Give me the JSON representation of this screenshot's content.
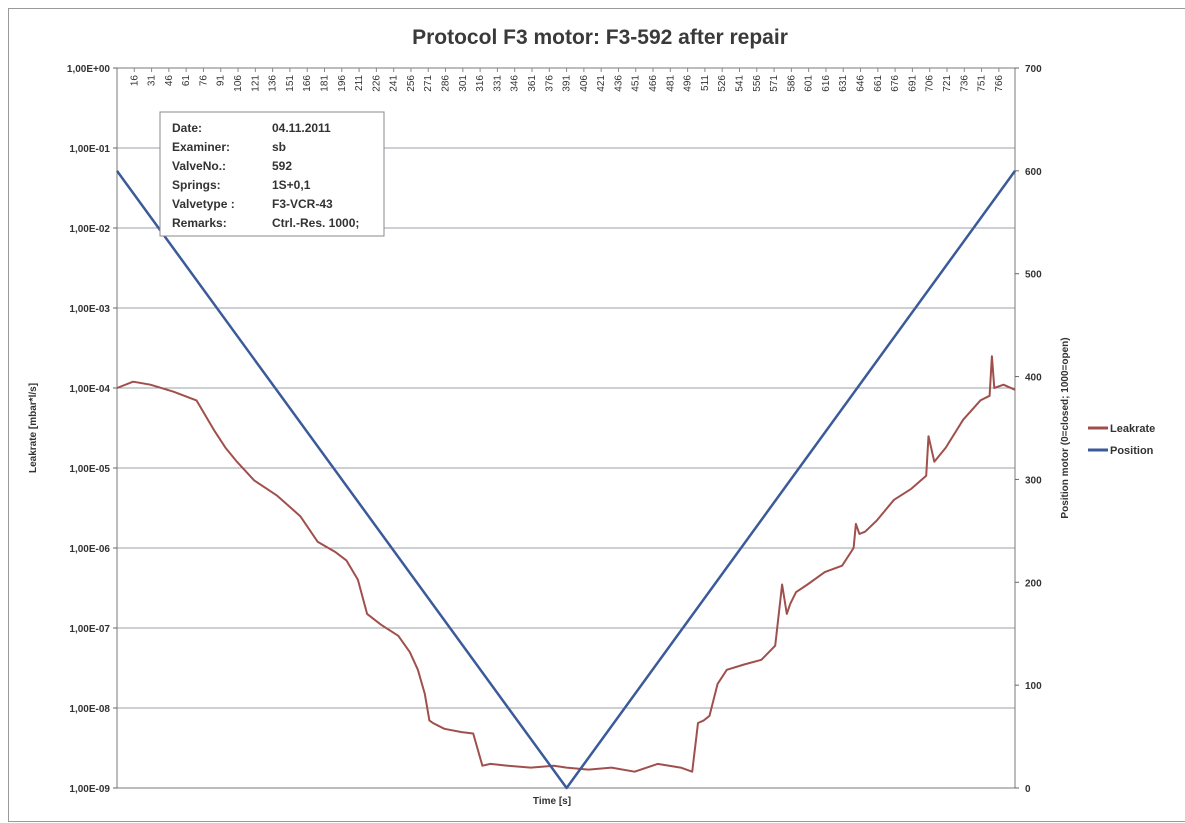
{
  "chart_data": {
    "type": "line",
    "title": "Protocol F3 motor: F3-592 after repair",
    "xlabel": "Time [s]",
    "ylabel_left": "Leakrate [mbar*l/s]",
    "ylabel_right": "Position motor (0=closed; 1000=open)",
    "x_ticks": [
      "16",
      "31",
      "46",
      "61",
      "76",
      "91",
      "106",
      "121",
      "136",
      "151",
      "166",
      "181",
      "196",
      "211",
      "226",
      "241",
      "256",
      "271",
      "286",
      "301",
      "316",
      "331",
      "346",
      "361",
      "376",
      "391",
      "406",
      "421",
      "436",
      "451",
      "466",
      "481",
      "496",
      "511",
      "526",
      "541",
      "556",
      "571",
      "586",
      "601",
      "616",
      "631",
      "646",
      "661",
      "676",
      "691",
      "706",
      "721",
      "736",
      "751",
      "766"
    ],
    "x_range": [
      1,
      780
    ],
    "y_left": {
      "scale": "log",
      "range": [
        1e-09,
        1
      ],
      "tick_labels": [
        "1,00E+00",
        "1,00E-01",
        "1,00E-02",
        "1,00E-03",
        "1,00E-04",
        "1,00E-05",
        "1,00E-06",
        "1,00E-07",
        "1,00E-08",
        "1,00E-09"
      ],
      "tick_values": [
        1,
        0.1,
        0.01,
        0.001,
        0.0001,
        1e-05,
        1e-06,
        1e-07,
        1e-08,
        1e-09
      ]
    },
    "y_right": {
      "scale": "linear",
      "range": [
        0,
        700
      ],
      "tick_labels": [
        "700",
        "600",
        "500",
        "400",
        "300",
        "200",
        "100",
        "0"
      ],
      "tick_values": [
        700,
        600,
        500,
        400,
        300,
        200,
        100,
        0
      ]
    },
    "grid": true,
    "legend_position": "right",
    "series": [
      {
        "name": "Leakrate",
        "axis": "left",
        "color": "#a0504c",
        "x": [
          1,
          15,
          30,
          50,
          70,
          85,
          95,
          105,
          120,
          140,
          160,
          175,
          190,
          200,
          210,
          218,
          230,
          245,
          255,
          262,
          268,
          272,
          275,
          285,
          300,
          310,
          318,
          325,
          340,
          360,
          380,
          391,
          410,
          430,
          450,
          470,
          490,
          500,
          505,
          510,
          515,
          522,
          530,
          545,
          560,
          572,
          578,
          582,
          585,
          590,
          600,
          615,
          630,
          640,
          642,
          645,
          650,
          660,
          675,
          690,
          703,
          705,
          710,
          720,
          735,
          750,
          758,
          760,
          762,
          770,
          780
        ],
        "y": [
          0.0001,
          0.00012,
          0.00011,
          9e-05,
          7e-05,
          3e-05,
          1.8e-05,
          1.2e-05,
          7e-06,
          4.5e-06,
          2.5e-06,
          1.2e-06,
          9e-07,
          7e-07,
          4e-07,
          1.5e-07,
          1.1e-07,
          8e-08,
          5e-08,
          3e-08,
          1.5e-08,
          7e-09,
          6.5e-09,
          5.5e-09,
          5e-09,
          4.8e-09,
          1.9e-09,
          2e-09,
          1.9e-09,
          1.8e-09,
          1.9e-09,
          1.8e-09,
          1.7e-09,
          1.8e-09,
          1.6e-09,
          2e-09,
          1.8e-09,
          1.6e-09,
          6.5e-09,
          7e-09,
          8e-09,
          2e-08,
          3e-08,
          3.5e-08,
          4e-08,
          6e-08,
          3.5e-07,
          1.5e-07,
          2e-07,
          2.8e-07,
          3.5e-07,
          5e-07,
          6e-07,
          1e-06,
          2e-06,
          1.5e-06,
          1.6e-06,
          2.2e-06,
          4e-06,
          5.5e-06,
          8e-06,
          2.5e-05,
          1.2e-05,
          1.8e-05,
          4e-05,
          7e-05,
          8e-05,
          0.00025,
          0.0001,
          0.00011,
          9.5e-05
        ]
      },
      {
        "name": "Position",
        "axis": "right",
        "color": "#3b5a9a",
        "x": [
          1,
          391,
          780
        ],
        "y": [
          600,
          0,
          600
        ]
      }
    ],
    "info_box": [
      {
        "label": "Date:",
        "value": "04.11.2011"
      },
      {
        "label": "Examiner:",
        "value": "sb"
      },
      {
        "label": "ValveNo.:",
        "value": "592"
      },
      {
        "label": "Springs:",
        "value": "1S+0,1"
      },
      {
        "label": "Valvetype :",
        "value": "F3-VCR-43"
      },
      {
        "label": "Remarks:",
        "value": "Ctrl.-Res. 1000;"
      }
    ]
  }
}
